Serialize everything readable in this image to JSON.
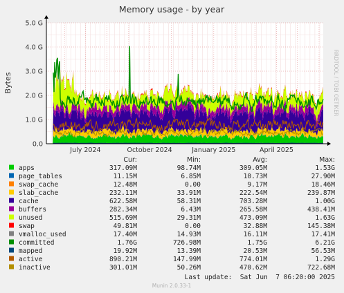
{
  "chart_data": {
    "type": "area",
    "title": "Memory usage - by year",
    "ylabel": "Bytes",
    "watermark": "RRDTOOL / TOBI OETIKER",
    "ylim": [
      0,
      5000000000
    ],
    "yticks": [
      {
        "value": 0,
        "label": "0.0"
      },
      {
        "value": 1000000000,
        "label": "1.0 G"
      },
      {
        "value": 2000000000,
        "label": "2.0 G"
      },
      {
        "value": 3000000000,
        "label": "3.0 G"
      },
      {
        "value": 4000000000,
        "label": "4.0 G"
      },
      {
        "value": 5000000000,
        "label": "5.0 G"
      }
    ],
    "xrange": [
      "2024-05-06",
      "2025-06-07"
    ],
    "xticks": [
      {
        "date": "2024-07-01",
        "label": "July 2024"
      },
      {
        "date": "2024-10-01",
        "label": "October 2024"
      },
      {
        "date": "2025-01-01",
        "label": "January 2025"
      },
      {
        "date": "2025-04-01",
        "label": "April 2025"
      }
    ],
    "legend_header": {
      "cur": "Cur:",
      "min": "Min:",
      "avg": "Avg:",
      "max": "Max:"
    },
    "series": [
      {
        "name": "apps",
        "color": "#00cc00",
        "cur": "317.09M",
        "min": "98.74M",
        "avg": "309.05M",
        "max": "1.53G"
      },
      {
        "name": "page_tables",
        "color": "#0066b3",
        "cur": "11.15M",
        "min": "6.85M",
        "avg": "10.73M",
        "max": "27.90M"
      },
      {
        "name": "swap_cache",
        "color": "#ff8000",
        "cur": "12.48M",
        "min": "0.00",
        "avg": "9.17M",
        "max": "18.46M"
      },
      {
        "name": "slab_cache",
        "color": "#ffcc00",
        "cur": "232.11M",
        "min": "33.91M",
        "avg": "222.54M",
        "max": "239.87M"
      },
      {
        "name": "cache",
        "color": "#330099",
        "cur": "622.58M",
        "min": "58.31M",
        "avg": "703.28M",
        "max": "1.00G"
      },
      {
        "name": "buffers",
        "color": "#990099",
        "cur": "282.34M",
        "min": "6.43M",
        "avg": "265.58M",
        "max": "438.41M"
      },
      {
        "name": "unused",
        "color": "#ccff00",
        "cur": "515.69M",
        "min": "29.31M",
        "avg": "473.09M",
        "max": "1.63G"
      },
      {
        "name": "swap",
        "color": "#ff0000",
        "cur": "49.81M",
        "min": "0.00",
        "avg": "32.88M",
        "max": "145.38M"
      },
      {
        "name": "vmalloc_used",
        "color": "#808080",
        "cur": "17.40M",
        "min": "14.93M",
        "avg": "16.11M",
        "max": "17.41M"
      },
      {
        "name": "committed",
        "color": "#008f00",
        "cur": "1.76G",
        "min": "726.98M",
        "avg": "1.75G",
        "max": "6.21G"
      },
      {
        "name": "mapped",
        "color": "#00487d",
        "cur": "19.92M",
        "min": "13.39M",
        "avg": "20.53M",
        "max": "56.53M"
      },
      {
        "name": "active",
        "color": "#b35a00",
        "cur": "890.21M",
        "min": "147.99M",
        "avg": "774.01M",
        "max": "1.29G"
      },
      {
        "name": "inactive",
        "color": "#b38f00",
        "cur": "301.01M",
        "min": "50.26M",
        "avg": "470.62M",
        "max": "722.68M"
      }
    ],
    "last_update": "Last update:  Sat Jun  7 06:20:00 2025",
    "footer": "Munin 2.0.33-1"
  }
}
